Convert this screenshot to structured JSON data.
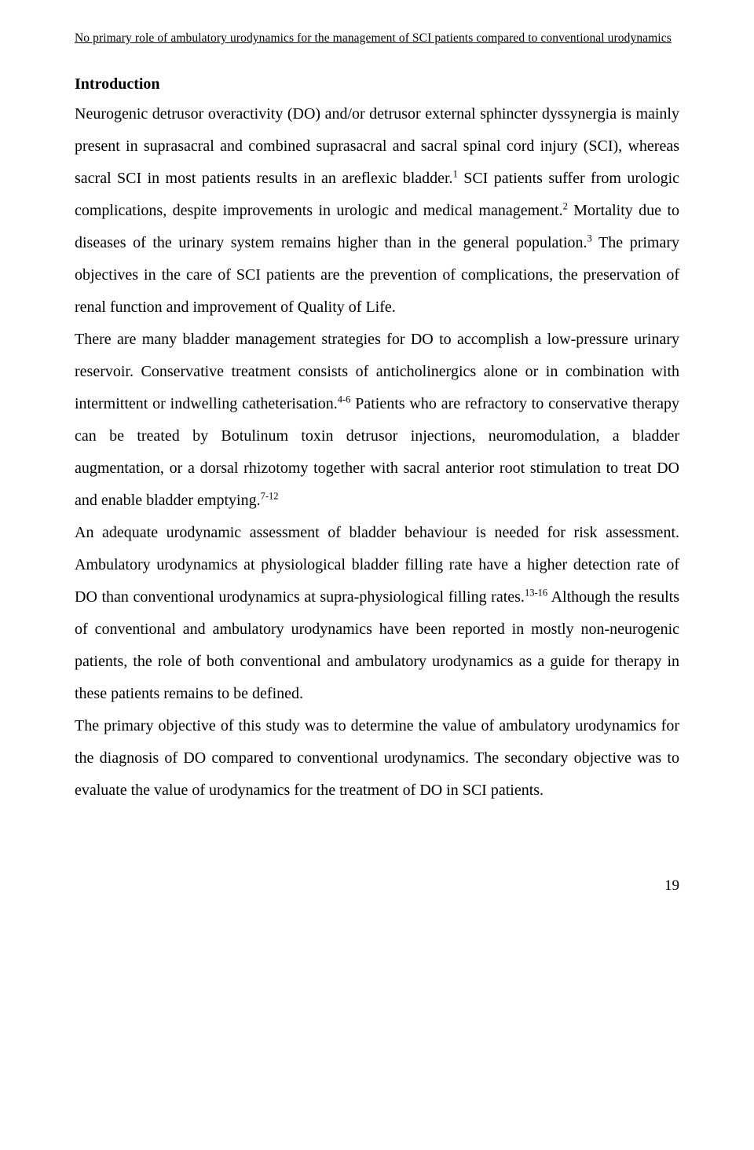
{
  "runningHead": "No primary role of ambulatory urodynamics for the management of SCI patients compared to conventional urodynamics",
  "sectionTitle": "Introduction",
  "para1_seg1": "Neurogenic detrusor overactivity (DO) and/or detrusor external sphincter dyssynergia is mainly present in suprasacral and combined suprasacral and sacral spinal cord injury (SCI), whereas sacral SCI in most patients results in an areflexic bladder.",
  "ref1": "1",
  "para1_seg2": " SCI patients suffer from urologic complications, despite improvements in urologic and medical management.",
  "ref2": "2",
  "para1_seg3": " Mortality due to diseases of the urinary system remains higher than in the general population.",
  "ref3": "3",
  "para1_seg4": " The primary objectives in the care of SCI patients are the prevention of complications, the preservation of renal function and improvement of Quality of Life.",
  "para2_seg1": "There are many bladder management strategies for DO to accomplish a low-pressure urinary reservoir. Conservative treatment consists of anticholinergics alone or in combination with intermittent or indwelling catheterisation.",
  "ref4": "4-6",
  "para2_seg2": " Patients who are refractory to conservative therapy can be treated by Botulinum toxin detrusor injections, neuromodulation, a bladder augmentation, or a dorsal rhizotomy together with sacral anterior root stimulation to treat DO and enable bladder emptying.",
  "ref5": "7-12",
  "para3_seg1": "An adequate urodynamic assessment of bladder behaviour is needed for risk assessment. Ambulatory urodynamics at physiological bladder filling rate have a higher detection rate of DO than conventional urodynamics at supra-physiological filling rates.",
  "ref6": "13-16",
  "para3_seg2": " Although the results of conventional and ambulatory urodynamics have been reported in mostly non-neurogenic patients, the role of both conventional and ambulatory urodynamics as a guide for therapy in these patients remains to be defined.",
  "para4": "The primary objective of this study was to determine the value of ambulatory urodynamics for the diagnosis of DO compared to conventional urodynamics. The secondary objective was to evaluate the value of urodynamics for the treatment of DO in SCI patients.",
  "pageNumber": "19"
}
